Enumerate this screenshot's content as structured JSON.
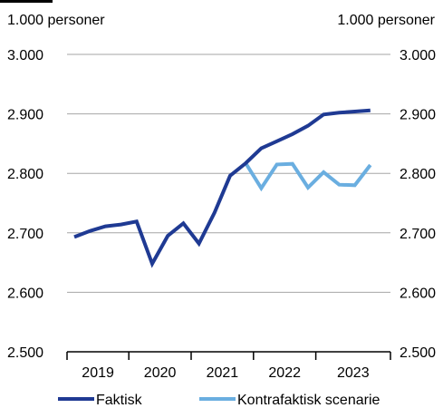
{
  "chart_data": {
    "type": "line",
    "y_unit_left": "1.000 personer",
    "y_unit_right": "1.000 personer",
    "ylim": [
      2500,
      3000
    ],
    "y_ticks": [
      3000,
      2900,
      2800,
      2700,
      2600,
      2500
    ],
    "y_tick_labels": [
      "3.000",
      "2.900",
      "2.800",
      "2.700",
      "2.600",
      "2.500"
    ],
    "x_categories": [
      "2019",
      "2020",
      "2021",
      "2022",
      "2023"
    ],
    "quarters_per_year": 4,
    "grid": "horizontal",
    "legend_position": "bottom",
    "series": [
      {
        "name": "Faktisk",
        "color": "#1F3A93",
        "start_index": 0,
        "values": [
          2693,
          2703,
          2711,
          2714,
          2719,
          2648,
          2695,
          2716,
          2682,
          2734,
          2796,
          2817,
          2842,
          2854,
          2866,
          2880,
          2899,
          2902,
          2904,
          2906
        ]
      },
      {
        "name": "Kontrafaktisk scenarie",
        "color": "#6AAEE0",
        "start_index": 11,
        "values": [
          2817,
          2775,
          2815,
          2816,
          2776,
          2802,
          2781,
          2780,
          2814
        ]
      }
    ]
  }
}
